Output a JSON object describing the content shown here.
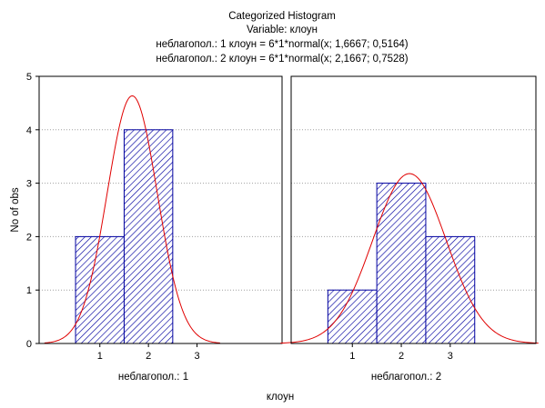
{
  "title": {
    "line1": "Categorized Histogram",
    "line2": "Variable: клоун",
    "line3": "неблагопол.: 1 клоун = 6*1*normal(x; 1,6667; 0,5164)",
    "line4": "неблагопол.: 2 клоун = 6*1*normal(x; 2,1667; 0,7528)"
  },
  "colors": {
    "bar_stroke": "#0000a0",
    "bar_hatch": "#0000a0",
    "bar_background": "#e8e8ff",
    "curve": "#e00000",
    "grid": "#a0a0a0",
    "axis": "#000000"
  },
  "chart_data": {
    "type": "bar",
    "title": "Categorized Histogram",
    "subtitle": "Variable: клоун",
    "ylabel": "No of obs",
    "xlabel": "клоун",
    "ylim": [
      0,
      5
    ],
    "y_ticks": [
      "0",
      "1",
      "2",
      "3",
      "4",
      "5"
    ],
    "xlim": [
      -0.25,
      4.75
    ],
    "x_ticks": [
      "1",
      "2",
      "3"
    ],
    "grid": "horizontal dotted",
    "panels": [
      {
        "label": "неблагопол.: 1",
        "bins": [
          {
            "from": 0.5,
            "to": 1.5,
            "count": 2
          },
          {
            "from": 1.5,
            "to": 2.5,
            "count": 4
          }
        ],
        "curve": {
          "formula": "6*1*normal(x; 1,6667; 0,5164)",
          "n": 6,
          "width": 1,
          "mean": 1.6667,
          "sd": 0.5164
        }
      },
      {
        "label": "неблагопол.: 2",
        "bins": [
          {
            "from": 0.5,
            "to": 1.5,
            "count": 1
          },
          {
            "from": 1.5,
            "to": 2.5,
            "count": 3
          },
          {
            "from": 2.5,
            "to": 3.5,
            "count": 2
          }
        ],
        "curve": {
          "formula": "6*1*normal(x; 2,1667; 0,7528)",
          "n": 6,
          "width": 1,
          "mean": 2.1667,
          "sd": 0.7528
        }
      }
    ]
  }
}
